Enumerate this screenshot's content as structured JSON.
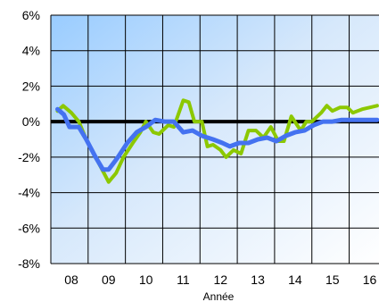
{
  "chart_data": {
    "type": "line",
    "title": "",
    "xlabel": "Année",
    "ylabel": "",
    "xlim": [
      2007.2,
      2016.0
    ],
    "ylim": [
      -8,
      6
    ],
    "x_tick_labels": [
      "08",
      "09",
      "10",
      "11",
      "12",
      "13",
      "14",
      "15",
      "16"
    ],
    "x_tick_values": [
      2007.75,
      2008.75,
      2009.75,
      2010.75,
      2011.75,
      2012.75,
      2013.75,
      2014.75,
      2015.75
    ],
    "y_tick_labels": [
      "6%",
      "4%",
      "2%",
      "0%",
      "-2%",
      "-4%",
      "-6%",
      "-8%"
    ],
    "y_tick_values": [
      6,
      4,
      2,
      0,
      -2,
      -4,
      -6,
      -8
    ],
    "grid": true,
    "legend": "none",
    "zero_line": true,
    "colors": {
      "green_series": "#8cc800",
      "blue_series": "#4472f0",
      "zero_line": "#000000",
      "gradient_top_left": "#99ccff",
      "gradient_bottom_right": "#ffffff",
      "grid": "#000000"
    },
    "series": [
      {
        "color": "green",
        "x": [
          2007.38,
          2007.53,
          2007.75,
          2007.95,
          2008.15,
          2008.4,
          2008.65,
          2008.75,
          2008.95,
          2009.15,
          2009.4,
          2009.6,
          2009.75,
          2009.95,
          2010.1,
          2010.35,
          2010.5,
          2010.75,
          2010.9,
          2011.05,
          2011.25,
          2011.4,
          2011.55,
          2011.75,
          2011.9,
          2012.1,
          2012.3,
          2012.5,
          2012.7,
          2012.9,
          2013.1,
          2013.3,
          2013.45,
          2013.65,
          2013.9,
          2014.05,
          2014.2,
          2014.45,
          2014.6,
          2014.75,
          2014.95,
          2015.15,
          2015.3,
          2015.55,
          2015.75,
          2015.95
        ],
        "values": [
          0.6,
          0.9,
          0.5,
          0.0,
          -1.0,
          -2.0,
          -3.0,
          -3.4,
          -2.9,
          -2.0,
          -1.2,
          -0.6,
          0.0,
          -0.6,
          -0.7,
          -0.2,
          -0.3,
          1.2,
          1.1,
          0.0,
          0.0,
          -1.4,
          -1.3,
          -1.6,
          -2.0,
          -1.6,
          -1.8,
          -0.5,
          -0.5,
          -0.9,
          -0.3,
          -1.1,
          -1.1,
          0.3,
          -0.5,
          0.0,
          0.0,
          0.5,
          0.9,
          0.6,
          0.8,
          0.8,
          0.5,
          0.7,
          0.8,
          0.9
        ]
      },
      {
        "color": "blue",
        "x": [
          2007.38,
          2007.55,
          2007.7,
          2007.95,
          2008.15,
          2008.4,
          2008.6,
          2008.75,
          2009.0,
          2009.25,
          2009.5,
          2009.75,
          2010.0,
          2010.25,
          2010.5,
          2010.75,
          2011.0,
          2011.25,
          2011.55,
          2011.8,
          2012.0,
          2012.25,
          2012.5,
          2012.75,
          2013.0,
          2013.25,
          2013.5,
          2013.75,
          2014.0,
          2014.25,
          2014.5,
          2014.75,
          2015.0,
          2015.25,
          2015.5,
          2015.75,
          2015.95
        ],
        "values": [
          0.7,
          0.4,
          -0.3,
          -0.3,
          -1.0,
          -2.0,
          -2.7,
          -2.7,
          -2.0,
          -1.2,
          -0.6,
          -0.3,
          0.1,
          0.0,
          0.0,
          -0.6,
          -0.5,
          -0.8,
          -1.0,
          -1.2,
          -1.4,
          -1.2,
          -1.2,
          -1.0,
          -0.9,
          -1.1,
          -0.8,
          -0.6,
          -0.5,
          -0.2,
          0.0,
          0.0,
          0.1,
          0.1,
          0.1,
          0.1,
          0.1
        ]
      }
    ]
  }
}
